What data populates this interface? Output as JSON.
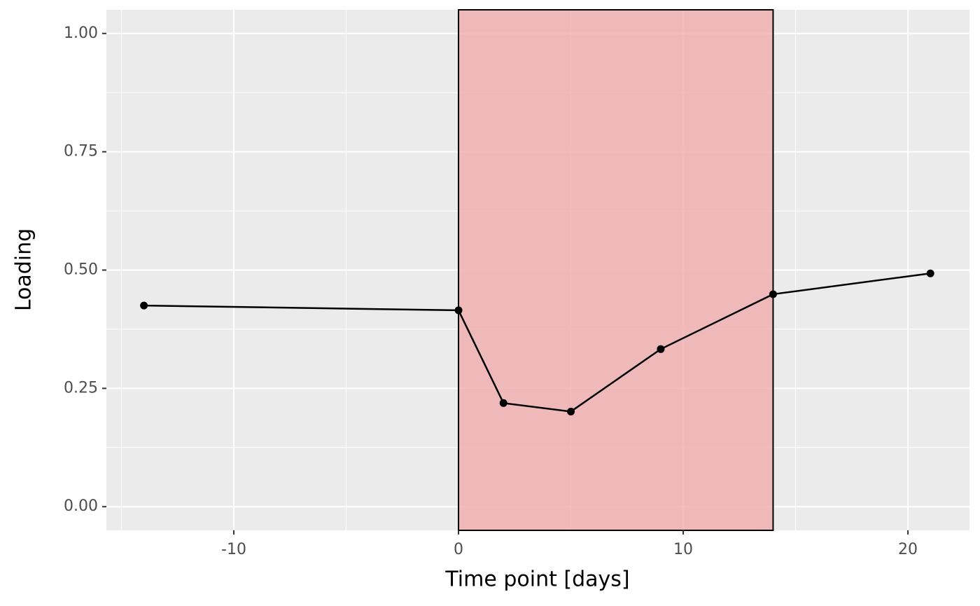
{
  "chart_data": {
    "type": "line",
    "x_label": "Time point [days]",
    "y_label": "Loading",
    "x": [
      -14,
      0,
      2,
      5,
      9,
      14,
      21
    ],
    "series": [
      {
        "color": "#000000",
        "values": [
          0.425,
          0.415,
          0.219,
          0.201,
          0.333,
          0.449,
          0.493
        ]
      }
    ],
    "shade": [
      0,
      14
    ],
    "shade_color": "#f0b0b0",
    "xlim": [
      -15.67,
      22.74
    ],
    "ylim": [
      -0.05,
      1.05
    ],
    "xticks": [
      -10,
      0,
      10,
      20
    ],
    "x_minor_ticks": [
      -15,
      -5,
      5,
      15
    ],
    "yticks": [
      {
        "value": 0,
        "label": "0.00"
      },
      {
        "value": 0.25,
        "label": "0.25"
      },
      {
        "value": 0.5,
        "label": "0.50"
      },
      {
        "value": 0.75,
        "label": "0.75"
      },
      {
        "value": 1,
        "label": "1.00"
      }
    ],
    "y_minor_ticks": [
      0.125,
      0.375,
      0.625,
      0.875
    ],
    "grid": true
  }
}
